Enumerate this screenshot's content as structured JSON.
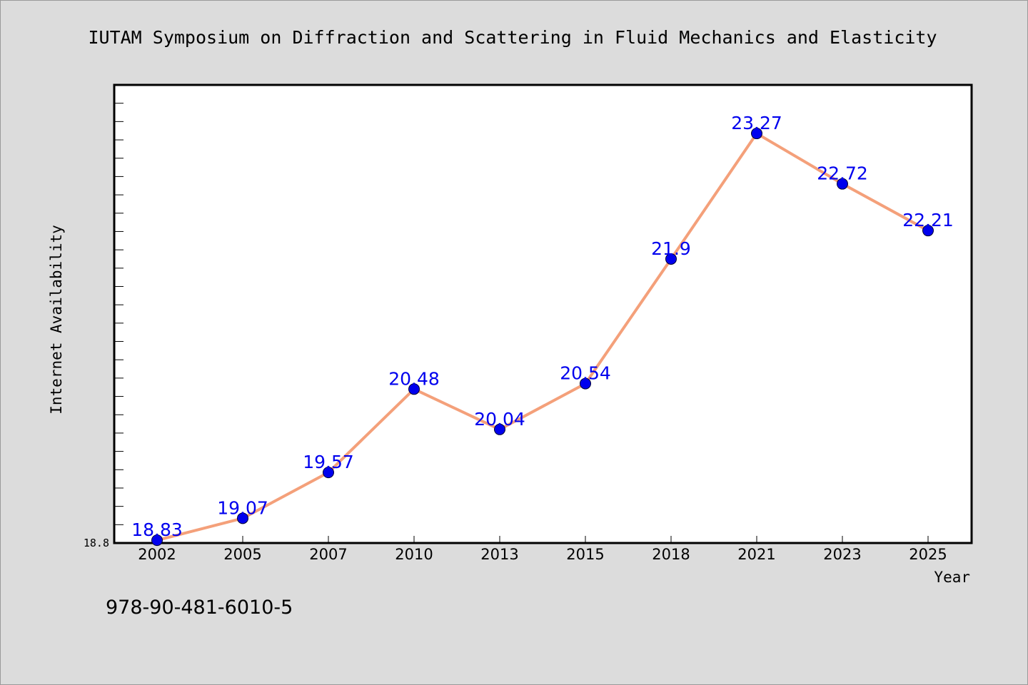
{
  "chart_data": {
    "type": "line",
    "title": "IUTAM Symposium on Diffraction and Scattering in Fluid Mechanics and Elasticity",
    "xlabel": "Year",
    "ylabel": "Internet Availability",
    "categories": [
      "2002",
      "2005",
      "2007",
      "2010",
      "2013",
      "2015",
      "2018",
      "2021",
      "2023",
      "2025"
    ],
    "series": [
      {
        "values": [
          18.83,
          19.07,
          19.57,
          20.48,
          20.04,
          20.54,
          21.9,
          23.27,
          22.72,
          22.21
        ],
        "labels": [
          "18.83",
          "19.07",
          "19.57",
          "20.48",
          "20.04",
          "20.54",
          "21.9",
          "23.27",
          "22.72",
          "22.21"
        ]
      }
    ],
    "y_tick_labels": [
      "18.8"
    ],
    "ylim": [
      18.8,
      23.8
    ],
    "grid": false,
    "line_color": "#f4a07a",
    "marker_color": "#0000ee",
    "label_color": "#0000ee"
  },
  "footer": {
    "isbn": "978-90-481-6010-5"
  }
}
